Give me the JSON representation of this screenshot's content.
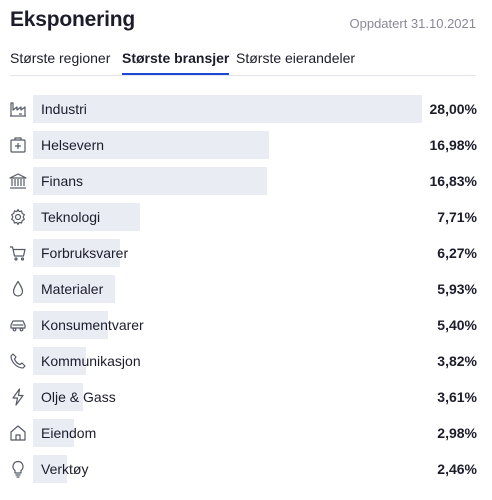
{
  "header": {
    "title": "Eksponering",
    "updated": "Oppdatert 31.10.2021"
  },
  "tabs": [
    {
      "label": "Største regioner",
      "active": false
    },
    {
      "label": "Største bransjer",
      "active": true
    },
    {
      "label": "Største eierandeler",
      "active": false
    }
  ],
  "accent_color": "#1f47d6",
  "bar_color": "#eaecf4",
  "sectors": [
    {
      "icon": "factory-icon",
      "label": "Industri",
      "value": "28,00%",
      "percent": 28.0
    },
    {
      "icon": "first-aid-kit-icon",
      "label": "Helsevern",
      "value": "16,98%",
      "percent": 16.98
    },
    {
      "icon": "bank-icon",
      "label": "Finans",
      "value": "16,83%",
      "percent": 16.83
    },
    {
      "icon": "gear-icon",
      "label": "Teknologi",
      "value": "7,71%",
      "percent": 7.71
    },
    {
      "icon": "shopping-cart-icon",
      "label": "Forbruksvarer",
      "value": "6,27%",
      "percent": 6.27
    },
    {
      "icon": "droplet-icon",
      "label": "Materialer",
      "value": "5,93%",
      "percent": 5.93
    },
    {
      "icon": "car-icon",
      "label": "Konsumentvarer",
      "value": "5,40%",
      "percent": 5.4
    },
    {
      "icon": "phone-icon",
      "label": "Kommunikasjon",
      "value": "3,82%",
      "percent": 3.82
    },
    {
      "icon": "lightning-icon",
      "label": "Olje & Gass",
      "value": "3,61%",
      "percent": 3.61
    },
    {
      "icon": "house-icon",
      "label": "Eiendom",
      "value": "2,98%",
      "percent": 2.98
    },
    {
      "icon": "lightbulb-icon",
      "label": "Verktøy",
      "value": "2,46%",
      "percent": 2.46
    }
  ]
}
